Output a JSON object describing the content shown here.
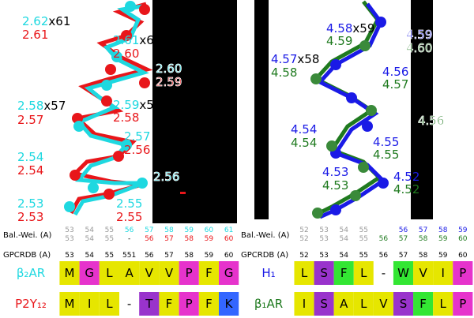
{
  "left_structure": {
    "labels": [
      {
        "parts": [
          {
            "text": "2.62",
            "color": "#1ed8e0"
          },
          {
            "text": "x61",
            "color": "#000000"
          }
        ]
      },
      {
        "parts": [
          {
            "text": "2.61",
            "color": "#e8161a"
          }
        ]
      },
      {
        "parts": [
          {
            "text": "2.61",
            "color": "#1ed8e0"
          },
          {
            "text": "x6",
            "color": "#000000"
          }
        ]
      },
      {
        "parts": [
          {
            "text": "2.60",
            "color": "#e8161a"
          }
        ]
      },
      {
        "parts": [
          {
            "text": "2.60",
            "color": "#1ed8e0"
          }
        ]
      },
      {
        "parts": [
          {
            "text": "2.59",
            "color": "#e8161a"
          }
        ]
      },
      {
        "parts": [
          {
            "text": "2.58",
            "color": "#1ed8e0"
          },
          {
            "text": "x57",
            "color": "#000000"
          }
        ]
      },
      {
        "parts": [
          {
            "text": "2.57",
            "color": "#e8161a"
          }
        ]
      },
      {
        "parts": [
          {
            "text": "2.59",
            "color": "#1ed8e0"
          },
          {
            "text": "x5",
            "color": "#000000"
          }
        ]
      },
      {
        "parts": [
          {
            "text": "2.58",
            "color": "#e8161a"
          }
        ]
      },
      {
        "parts": [
          {
            "text": "2.57",
            "color": "#1ed8e0"
          }
        ]
      },
      {
        "parts": [
          {
            "text": "2.56",
            "color": "#e8161a"
          }
        ]
      },
      {
        "parts": [
          {
            "text": "2.54",
            "color": "#1ed8e0"
          }
        ]
      },
      {
        "parts": [
          {
            "text": "2.54",
            "color": "#e8161a"
          }
        ]
      },
      {
        "parts": [
          {
            "text": "2.56",
            "color": "#1ed8e0"
          }
        ]
      },
      {
        "parts": [
          {
            "text": "2.53",
            "color": "#1ed8e0"
          }
        ]
      },
      {
        "parts": [
          {
            "text": "2.53",
            "color": "#e8161a"
          }
        ]
      },
      {
        "parts": [
          {
            "text": "2.55",
            "color": "#1ed8e0"
          }
        ]
      },
      {
        "parts": [
          {
            "text": "2.55",
            "color": "#e8161a"
          }
        ]
      }
    ]
  },
  "right_structure": {
    "labels": [
      {
        "parts": [
          {
            "text": "4.58",
            "color": "#1a1ae6"
          },
          {
            "text": "x59",
            "color": "#000000"
          }
        ]
      },
      {
        "parts": [
          {
            "text": "4.59",
            "color": "#1f7a1f"
          }
        ]
      },
      {
        "parts": [
          {
            "text": "4.59",
            "color": "#1a1ae6"
          }
        ]
      },
      {
        "parts": [
          {
            "text": "4.60",
            "color": "#1f7a1f"
          }
        ]
      },
      {
        "parts": [
          {
            "text": "4.57",
            "color": "#1a1ae6"
          },
          {
            "text": "x58",
            "color": "#000000"
          }
        ]
      },
      {
        "parts": [
          {
            "text": "4.58",
            "color": "#1f7a1f"
          }
        ]
      },
      {
        "parts": [
          {
            "text": "4.56",
            "color": "#1a1ae6"
          }
        ]
      },
      {
        "parts": [
          {
            "text": "4.57",
            "color": "#1f7a1f"
          }
        ]
      },
      {
        "parts": [
          {
            "text": "4.56",
            "color": "#1f7a1f"
          }
        ]
      },
      {
        "parts": [
          {
            "text": "4.54",
            "color": "#1a1ae6"
          }
        ]
      },
      {
        "parts": [
          {
            "text": "4.54",
            "color": "#1f7a1f"
          }
        ]
      },
      {
        "parts": [
          {
            "text": "4.55",
            "color": "#1a1ae6"
          }
        ]
      },
      {
        "parts": [
          {
            "text": "4.55",
            "color": "#1f7a1f"
          }
        ]
      },
      {
        "parts": [
          {
            "text": "4.53",
            "color": "#1a1ae6"
          }
        ]
      },
      {
        "parts": [
          {
            "text": "4.53",
            "color": "#1f7a1f"
          }
        ]
      },
      {
        "parts": [
          {
            "text": "4.52",
            "color": "#1a1ae6"
          }
        ]
      },
      {
        "parts": [
          {
            "text": "4.52",
            "color": "#1f7a1f"
          }
        ]
      }
    ]
  },
  "left_table": {
    "balwei_label": "Bal.-Wei. (A)",
    "balwei": [
      {
        "values": [
          "53",
          "54",
          "55",
          "56",
          "57",
          "58",
          "59",
          "60",
          "61"
        ],
        "colors": [
          "#999999",
          "#999999",
          "#999999",
          "#1ed8e0",
          "#1ed8e0",
          "#1ed8e0",
          "#1ed8e0",
          "#1ed8e0",
          "#1ed8e0"
        ]
      },
      {
        "values": [
          "53",
          "54",
          "55",
          "-",
          "56",
          "57",
          "58",
          "59",
          "60"
        ],
        "colors": [
          "#999999",
          "#999999",
          "#999999",
          "#000000",
          "#e8161a",
          "#e8161a",
          "#e8161a",
          "#e8161a",
          "#e8161a"
        ]
      }
    ],
    "gpcrdb_label": "GPCRDB (A)",
    "gpcrdb": [
      "53",
      "54",
      "55",
      "551",
      "56",
      "57",
      "58",
      "59",
      "60"
    ],
    "sequences": [
      {
        "name": "β₂AR",
        "name_color": "#1ed8e0",
        "residues": [
          "M",
          "G",
          "L",
          "A",
          "V",
          "V",
          "P",
          "F",
          "G"
        ],
        "colors": [
          "#e6e600",
          "#e633cc",
          "#e6e600",
          "#e6e600",
          "#e6e600",
          "#e6e600",
          "#e633cc",
          "#e6e600",
          "#e633cc"
        ]
      },
      {
        "name": "P2Y₁₂",
        "name_color": "#e8161a",
        "residues": [
          "M",
          "I",
          "L",
          "-",
          "T",
          "F",
          "P",
          "F",
          "K"
        ],
        "colors": [
          "#e6e600",
          "#e6e600",
          "#e6e600",
          "#ffffff",
          "#9933cc",
          "#e6e600",
          "#e633cc",
          "#e6e600",
          "#3366ff"
        ]
      }
    ]
  },
  "right_table": {
    "balwei_label": "Bal.-Wei. (A)",
    "balwei": [
      {
        "values": [
          "52",
          "53",
          "54",
          "55",
          null,
          "56",
          "57",
          "58",
          "59"
        ],
        "colors": [
          "#999999",
          "#999999",
          "#999999",
          "#999999",
          null,
          "#1a1ae6",
          "#1a1ae6",
          "#1a1ae6",
          "#1a1ae6"
        ]
      },
      {
        "values": [
          "52",
          "53",
          "54",
          "55",
          "56",
          "57",
          "58",
          "59",
          "60"
        ],
        "colors": [
          "#999999",
          "#999999",
          "#999999",
          "#999999",
          "#1f7a1f",
          "#1f7a1f",
          "#1f7a1f",
          "#1f7a1f",
          "#1f7a1f"
        ]
      }
    ],
    "gpcrdb_label": "GPCRDB (A)",
    "gpcrdb": [
      "52",
      "53",
      "54",
      "55",
      "56",
      "57",
      "58",
      "59",
      "60"
    ],
    "sequences": [
      {
        "name": "H₁",
        "name_color": "#1a1ae6",
        "residues": [
          "L",
          "S",
          "F",
          "L",
          "-",
          "W",
          "V",
          "I",
          "P"
        ],
        "colors": [
          "#e6e600",
          "#9933cc",
          "#33e633",
          "#e6e600",
          "#ffffff",
          "#33e633",
          "#e6e600",
          "#e6e600",
          "#e633cc"
        ]
      },
      {
        "name": "β₁AR",
        "name_color": "#1f7a1f",
        "residues": [
          "I",
          "S",
          "A",
          "L",
          "V",
          "S",
          "F",
          "L",
          "P"
        ],
        "colors": [
          "#e6e600",
          "#9933cc",
          "#e6e600",
          "#e6e600",
          "#e6e600",
          "#9933cc",
          "#33e633",
          "#e6e600",
          "#e633cc"
        ]
      }
    ]
  }
}
